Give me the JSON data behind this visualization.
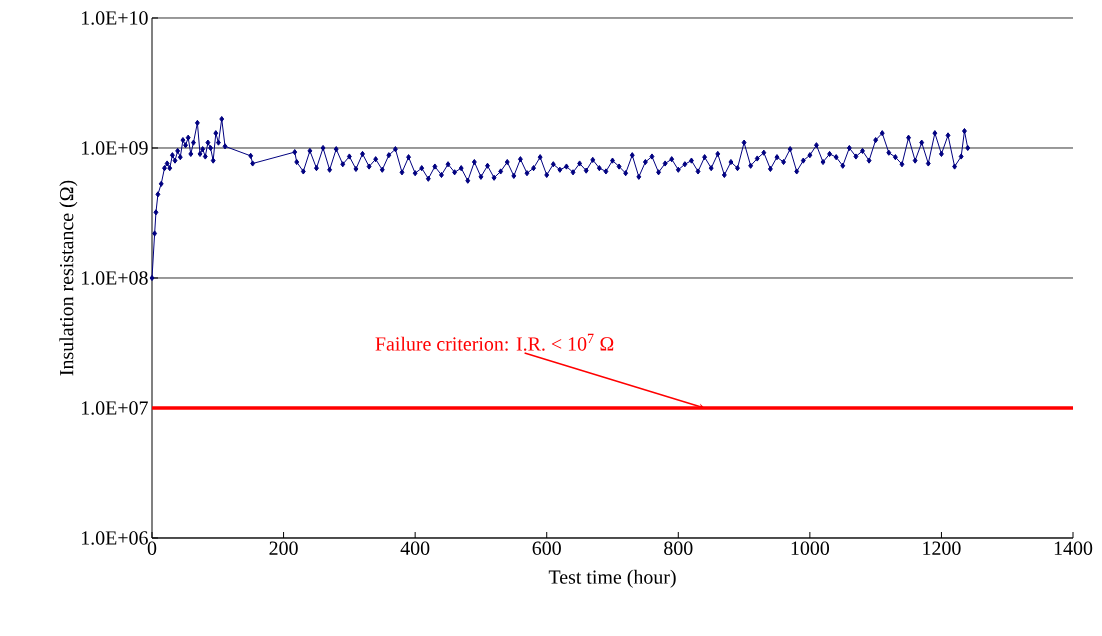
{
  "chart_data": {
    "type": "line",
    "xlabel": "Test time (hour)",
    "ylabel": "Insulation resistance (Ω)",
    "log": "y",
    "grid": "y",
    "marker": "diamond",
    "line_style": "solid",
    "xlim": [
      0,
      1400
    ],
    "xticks": [
      0,
      200,
      400,
      600,
      800,
      1000,
      1200,
      1400
    ],
    "ylim": [
      1000000.0,
      10000000000.0
    ],
    "yticks": [
      {
        "value": 1000000.0,
        "label": "1.0E+06"
      },
      {
        "value": 10000000.0,
        "label": "1.0E+07"
      },
      {
        "value": 100000000.0,
        "label": "1.0E+08"
      },
      {
        "value": 1000000000.0,
        "label": "1.0E+09"
      },
      {
        "value": 10000000000.0,
        "label": "1.0E+10"
      }
    ],
    "series": [
      {
        "color": "#000080",
        "x": [
          0,
          4,
          6,
          9,
          14,
          19,
          23,
          27,
          31,
          35,
          39,
          43,
          47,
          51,
          55,
          59,
          63,
          69,
          73,
          77,
          81,
          85,
          89,
          93,
          97,
          101,
          106,
          111,
          150,
          153,
          217,
          220,
          230,
          240,
          250,
          260,
          270,
          280,
          290,
          300,
          310,
          320,
          330,
          340,
          350,
          360,
          370,
          380,
          390,
          400,
          410,
          420,
          430,
          440,
          450,
          460,
          470,
          480,
          490,
          500,
          510,
          520,
          530,
          540,
          550,
          560,
          570,
          580,
          590,
          600,
          610,
          620,
          630,
          640,
          650,
          660,
          670,
          680,
          690,
          700,
          710,
          720,
          730,
          740,
          750,
          760,
          770,
          780,
          790,
          800,
          810,
          820,
          830,
          840,
          850,
          860,
          870,
          880,
          890,
          900,
          910,
          920,
          930,
          940,
          950,
          960,
          970,
          980,
          990,
          1000,
          1010,
          1020,
          1030,
          1040,
          1050,
          1060,
          1070,
          1080,
          1090,
          1100,
          1110,
          1120,
          1130,
          1140,
          1150,
          1160,
          1170,
          1180,
          1190,
          1200,
          1210,
          1220,
          1230,
          1235,
          1240
        ],
        "values": [
          100000000.0,
          220000000.0,
          320000000.0,
          440000000.0,
          530000000.0,
          700000000.0,
          760000000.0,
          700000000.0,
          880000000.0,
          800000000.0,
          950000000.0,
          850000000.0,
          1150000000.0,
          1050000000.0,
          1200000000.0,
          900000000.0,
          1100000000.0,
          1560000000.0,
          900000000.0,
          980000000.0,
          860000000.0,
          1100000000.0,
          1000000000.0,
          800000000.0,
          1300000000.0,
          1100000000.0,
          1670000000.0,
          1030000000.0,
          870000000.0,
          760000000.0,
          930000000.0,
          780000000.0,
          660000000.0,
          950000000.0,
          700000000.0,
          1000000000.0,
          680000000.0,
          980000000.0,
          750000000.0,
          860000000.0,
          690000000.0,
          900000000.0,
          720000000.0,
          820000000.0,
          680000000.0,
          880000000.0,
          980000000.0,
          650000000.0,
          850000000.0,
          640000000.0,
          700000000.0,
          580000000.0,
          720000000.0,
          620000000.0,
          750000000.0,
          650000000.0,
          700000000.0,
          560000000.0,
          780000000.0,
          600000000.0,
          730000000.0,
          590000000.0,
          660000000.0,
          780000000.0,
          610000000.0,
          820000000.0,
          640000000.0,
          700000000.0,
          850000000.0,
          620000000.0,
          750000000.0,
          680000000.0,
          720000000.0,
          650000000.0,
          760000000.0,
          670000000.0,
          810000000.0,
          700000000.0,
          660000000.0,
          800000000.0,
          720000000.0,
          640000000.0,
          880000000.0,
          600000000.0,
          780000000.0,
          860000000.0,
          650000000.0,
          760000000.0,
          820000000.0,
          680000000.0,
          750000000.0,
          800000000.0,
          660000000.0,
          850000000.0,
          700000000.0,
          900000000.0,
          620000000.0,
          780000000.0,
          700000000.0,
          1100000000.0,
          730000000.0,
          830000000.0,
          920000000.0,
          690000000.0,
          850000000.0,
          780000000.0,
          980000000.0,
          660000000.0,
          800000000.0,
          880000000.0,
          1050000000.0,
          780000000.0,
          900000000.0,
          850000000.0,
          730000000.0,
          1000000000.0,
          860000000.0,
          950000000.0,
          800000000.0,
          1150000000.0,
          1300000000.0,
          920000000.0,
          850000000.0,
          750000000.0,
          1200000000.0,
          800000000.0,
          1100000000.0,
          760000000.0,
          1300000000.0,
          900000000.0,
          1250000000.0,
          720000000.0,
          860000000.0,
          1350000000.0,
          1000000000.0
        ]
      }
    ],
    "ref_lines": [
      {
        "axis": "y",
        "value": 10000000.0,
        "color": "#ff0000"
      }
    ],
    "annotations": [
      {
        "text": "Failure criterion: I.R. < 10$^{7}$ Ω",
        "x": 840,
        "y": 10000000.0
      }
    ]
  }
}
